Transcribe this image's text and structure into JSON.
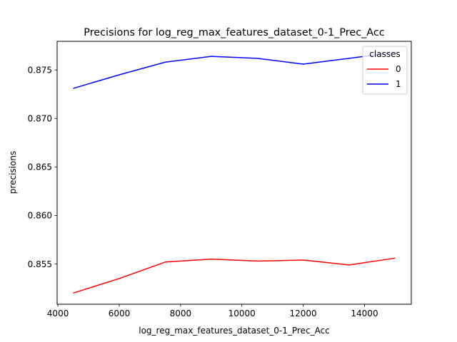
{
  "chart_data": {
    "type": "line",
    "title": "Precisions for log_reg_max_features_dataset_0-1_Prec_Acc",
    "xlabel": "log_reg_max_features_dataset_0-1_Prec_Acc",
    "ylabel": "precisions",
    "x": [
      4500,
      6000,
      7500,
      9000,
      10500,
      12000,
      13500,
      15000
    ],
    "series": [
      {
        "name": "0",
        "color": "#ff0000",
        "values": [
          0.852,
          0.8535,
          0.8552,
          0.8555,
          0.8553,
          0.8554,
          0.8549,
          0.8556
        ]
      },
      {
        "name": "1",
        "color": "#0000ff",
        "values": [
          0.8731,
          0.8745,
          0.8758,
          0.8764,
          0.8762,
          0.8756,
          0.8762,
          0.8768
        ]
      }
    ],
    "xlim": [
      3975,
      15525
    ],
    "ylim": [
      0.85085,
      0.87795
    ],
    "xticks": [
      4000,
      6000,
      8000,
      10000,
      12000,
      14000
    ],
    "yticks": [
      0.855,
      0.86,
      0.865,
      0.87,
      0.875
    ],
    "ytick_labels": [
      "0.855",
      "0.860",
      "0.865",
      "0.870",
      "0.875"
    ],
    "grid": false,
    "legend": {
      "title": "classes",
      "placement": "top-right"
    }
  }
}
